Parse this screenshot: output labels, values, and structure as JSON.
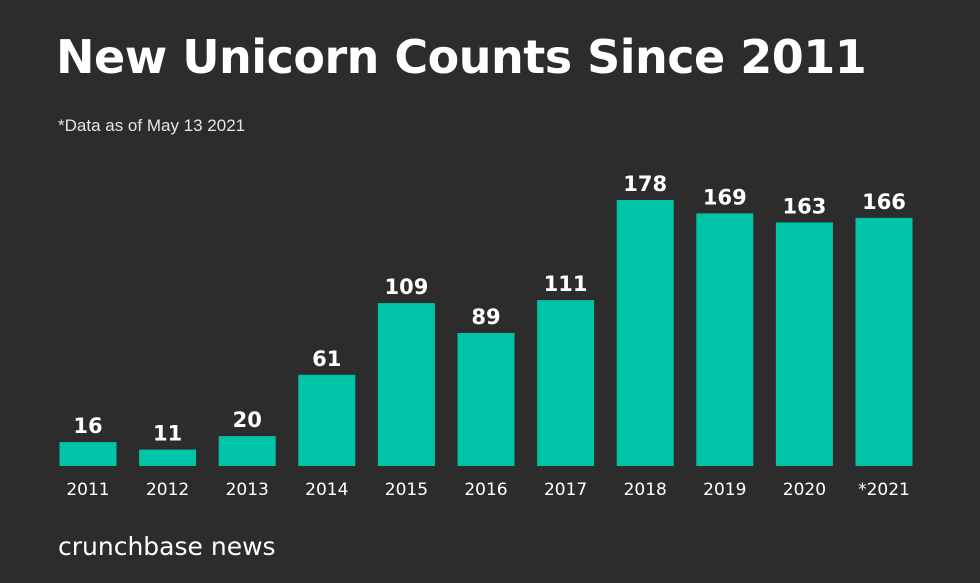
{
  "header": {
    "title": "New Unicorn Counts Since 2011",
    "subtitle": "*Data as of May 13 2021"
  },
  "footer": {
    "brand": "crunchbase news"
  },
  "colors": {
    "background": "#2c2c2c",
    "bar": "#00c4a7",
    "text": "#ffffff"
  },
  "chart_data": {
    "type": "bar",
    "title": "New Unicorn Counts Since 2011",
    "subtitle": "*Data as of May 13 2021",
    "categories": [
      "2011",
      "2012",
      "2013",
      "2014",
      "2015",
      "2016",
      "2017",
      "2018",
      "2019",
      "2020",
      "*2021"
    ],
    "values": [
      16,
      11,
      20,
      61,
      109,
      89,
      111,
      178,
      169,
      163,
      166
    ],
    "ylim": [
      0,
      178
    ],
    "grid": false,
    "legend": "none",
    "data_labels": true
  }
}
